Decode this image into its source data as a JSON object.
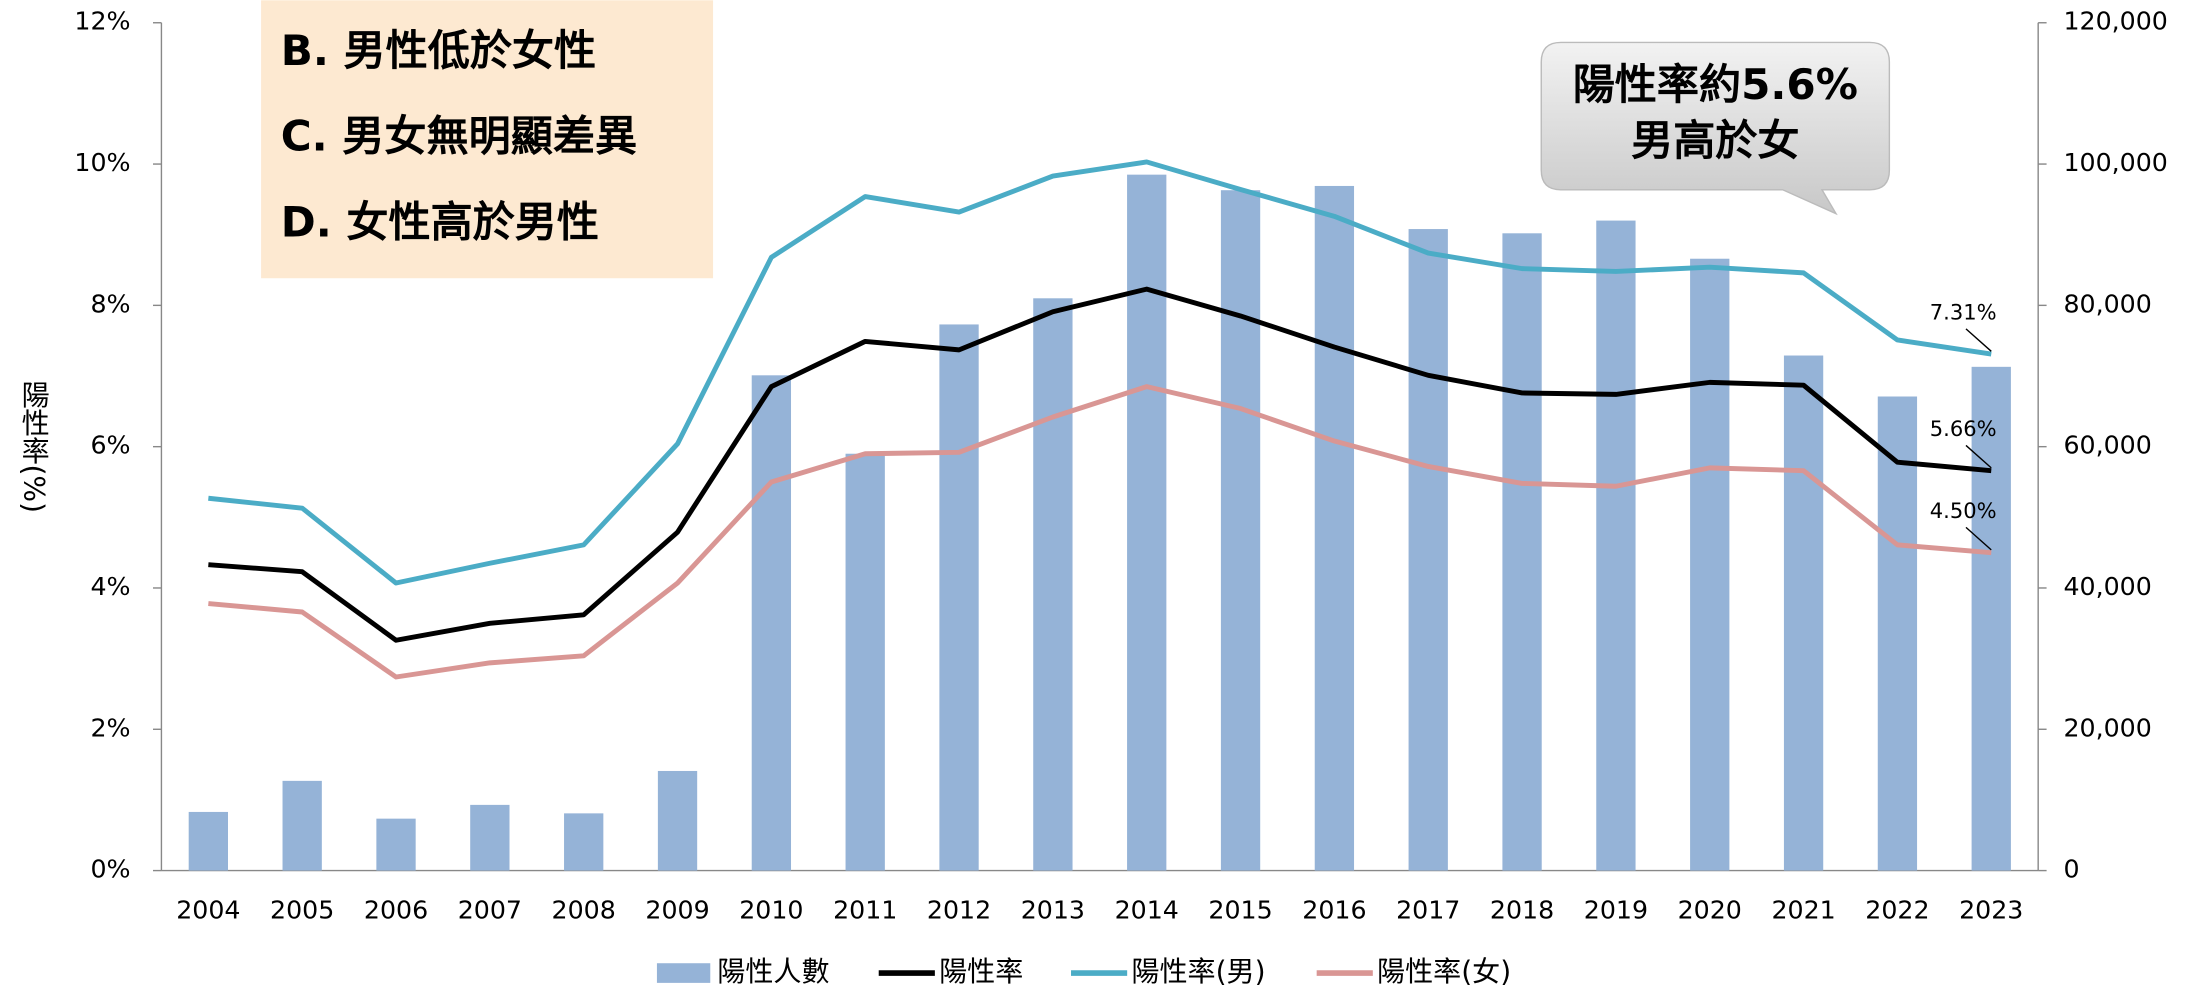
{
  "chart_data": {
    "type": "combo",
    "y_label": "陽性率(%)",
    "categories": [
      "2004",
      "2005",
      "2006",
      "2007",
      "2008",
      "2009",
      "2010",
      "2011",
      "2012",
      "2013",
      "2014",
      "2015",
      "2016",
      "2017",
      "2018",
      "2019",
      "2020",
      "2021",
      "2022",
      "2023"
    ],
    "series": [
      {
        "name": "陽性人數",
        "type": "bar",
        "axis": "y2",
        "color": "#95b3d7",
        "values": [
          8300,
          12700,
          7350,
          9300,
          8100,
          14100,
          70100,
          59000,
          77300,
          81000,
          98500,
          96300,
          96900,
          90800,
          90200,
          92000,
          86600,
          72900,
          67100,
          71300
        ]
      },
      {
        "name": "陽性率",
        "type": "line",
        "color": "#000000",
        "values": [
          4.33,
          4.23,
          3.26,
          3.5,
          3.62,
          4.79,
          6.85,
          7.49,
          7.37,
          7.91,
          8.23,
          7.85,
          7.41,
          7.01,
          6.76,
          6.74,
          6.91,
          6.87,
          5.78,
          5.66
        ],
        "value_labels": [
          null,
          null,
          null,
          null,
          null,
          null,
          null,
          null,
          null,
          null,
          null,
          null,
          null,
          null,
          null,
          null,
          null,
          null,
          null,
          "5.66%"
        ]
      },
      {
        "name": "陽性率(男)",
        "type": "line",
        "color": "#4bacc6",
        "values": [
          5.27,
          5.13,
          4.07,
          4.35,
          4.61,
          6.04,
          8.68,
          9.54,
          9.32,
          9.83,
          10.03,
          9.64,
          9.26,
          8.74,
          8.52,
          8.48,
          8.54,
          8.46,
          7.51,
          7.31
        ],
        "value_labels": [
          null,
          null,
          null,
          null,
          null,
          null,
          null,
          null,
          null,
          null,
          null,
          null,
          null,
          null,
          null,
          null,
          null,
          null,
          null,
          "7.31%"
        ]
      },
      {
        "name": "陽性率(女)",
        "type": "line",
        "color": "#d99694",
        "values": [
          3.78,
          3.66,
          2.74,
          2.94,
          3.04,
          4.07,
          5.5,
          5.9,
          5.92,
          6.42,
          6.85,
          6.54,
          6.08,
          5.72,
          5.48,
          5.44,
          5.7,
          5.66,
          4.61,
          4.5
        ],
        "value_labels": [
          null,
          null,
          null,
          null,
          null,
          null,
          null,
          null,
          null,
          null,
          null,
          null,
          null,
          null,
          null,
          null,
          null,
          null,
          null,
          "4.50%"
        ]
      }
    ],
    "ylim": [
      0,
      12
    ],
    "yticks": [
      {
        "value": 0,
        "label": "0%"
      },
      {
        "value": 2,
        "label": "2%"
      },
      {
        "value": 4,
        "label": "4%"
      },
      {
        "value": 6,
        "label": "6%"
      },
      {
        "value": 8,
        "label": "8%"
      },
      {
        "value": 10,
        "label": "10%"
      },
      {
        "value": 12,
        "label": "12%"
      }
    ],
    "y2lim": [
      0,
      120000
    ],
    "y2ticks": [
      0,
      {
        "value": 20000,
        "label": "20,000"
      },
      {
        "value": 40000,
        "label": "40,000"
      },
      {
        "value": 60000,
        "label": "60,000"
      },
      {
        "value": 80000,
        "label": "80,000"
      },
      {
        "value": 100000,
        "label": "100,000"
      },
      {
        "value": 120000,
        "label": "120,000"
      }
    ],
    "legend": "bottom",
    "annotations": {
      "options": [
        "B. 男性低於女性",
        "C. 男女無明顯差異",
        "D. 女性高於男性"
      ],
      "callout": [
        "陽性率約5.6%",
        "男高於女"
      ]
    }
  }
}
